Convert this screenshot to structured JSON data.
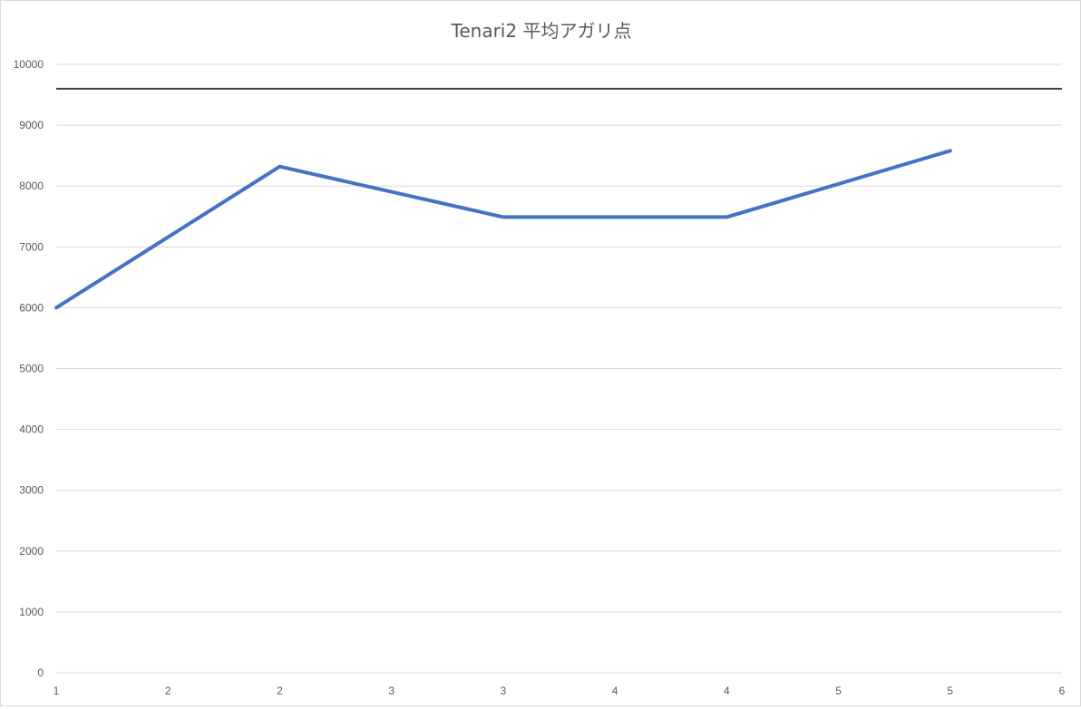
{
  "chart_data": {
    "type": "line",
    "title": "Tenari2 平均アガリ点",
    "x_tick_labels": [
      "1",
      "2",
      "2",
      "3",
      "3",
      "4",
      "4",
      "5",
      "5",
      "6"
    ],
    "y_tick_labels": [
      "0",
      "1000",
      "2000",
      "3000",
      "4000",
      "5000",
      "6000",
      "7000",
      "8000",
      "9000",
      "10000"
    ],
    "ylim": [
      0,
      10000
    ],
    "grid": true,
    "series": [
      {
        "values": [
          6000,
          8320,
          7490,
          7490,
          8580
        ],
        "x_index": [
          0,
          2,
          4,
          6,
          8
        ],
        "color": "#4472c4"
      }
    ],
    "reference_line": {
      "value": 9600,
      "color": "#404040"
    }
  }
}
